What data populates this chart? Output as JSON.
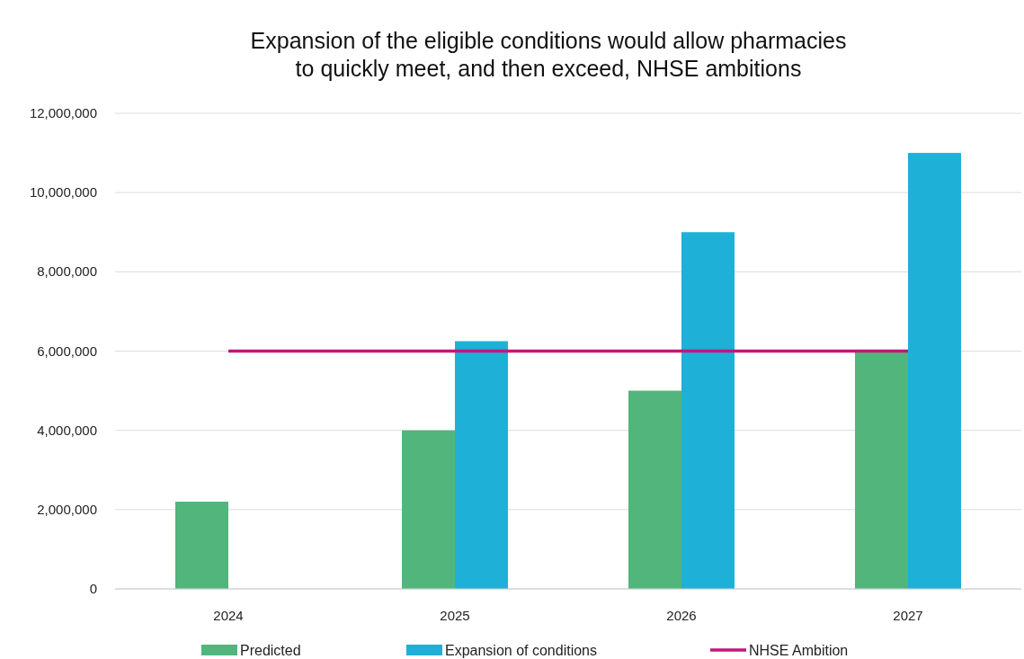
{
  "chart_data": {
    "type": "bar",
    "title": "Expansion of the eligible conditions would allow pharmacies\nto quickly meet, and then exceed, NHSE ambitions",
    "categories": [
      "2024",
      "2025",
      "2026",
      "2027"
    ],
    "series": [
      {
        "name": "Predicted",
        "color": "#52b57c",
        "values": [
          2200000,
          4000000,
          5000000,
          6000000
        ]
      },
      {
        "name": "Expansion of conditions",
        "color": "#1fb0d8",
        "values": [
          null,
          6250000,
          9000000,
          11000000
        ]
      },
      {
        "name": "NHSE Ambition",
        "type": "line",
        "color": "#c3177b",
        "values": [
          6000000,
          6000000,
          6000000,
          6000000
        ],
        "marker": "none"
      }
    ],
    "ylim": [
      0,
      12000000
    ],
    "yticks": [
      {
        "value": 0,
        "label": "0"
      },
      {
        "value": 2000000,
        "label": "2,000,000"
      },
      {
        "value": 4000000,
        "label": "4,000,000"
      },
      {
        "value": 6000000,
        "label": "6,000,000"
      },
      {
        "value": 8000000,
        "label": "8,000,000"
      },
      {
        "value": 10000000,
        "label": "10,000,000"
      },
      {
        "value": 12000000,
        "label": "12,000,000"
      }
    ],
    "grid": "y",
    "legend": "bottom"
  }
}
